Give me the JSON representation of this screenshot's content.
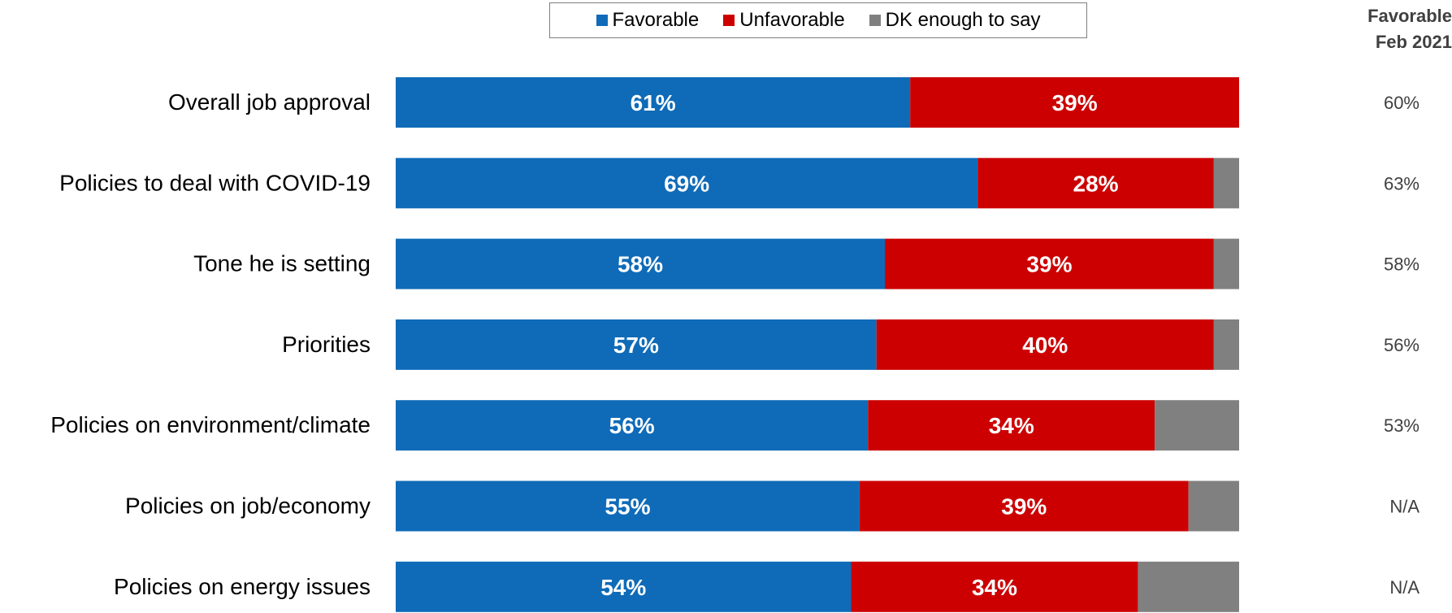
{
  "colors": {
    "favorable": "#0f6bb8",
    "unfavorable": "#cc0000",
    "dk": "#808080"
  },
  "legend": [
    {
      "label": "Favorable",
      "color": "#0f6bb8"
    },
    {
      "label": "Unfavorable",
      "color": "#cc0000"
    },
    {
      "label": "DK enough to say",
      "color": "#808080"
    }
  ],
  "side_header": {
    "line1": "Favorable",
    "line2": "Feb 2021"
  },
  "chart_data": {
    "type": "bar",
    "orientation": "horizontal",
    "stacked": true,
    "xlim": [
      0,
      100
    ],
    "categories": [
      "Overall job approval",
      "Policies to deal with COVID-19",
      "Tone he is setting",
      "Priorities",
      "Policies on environment/climate",
      "Policies on job/economy",
      "Policies on energy issues"
    ],
    "series": [
      {
        "name": "Favorable",
        "values": [
          61,
          69,
          58,
          57,
          56,
          55,
          54
        ],
        "labels": [
          "61%",
          "69%",
          "58%",
          "57%",
          "56%",
          "55%",
          "54%"
        ]
      },
      {
        "name": "Unfavorable",
        "values": [
          39,
          28,
          39,
          40,
          34,
          39,
          34
        ],
        "labels": [
          "39%",
          "28%",
          "39%",
          "40%",
          "34%",
          "39%",
          "34%"
        ]
      },
      {
        "name": "DK enough to say",
        "values": [
          0,
          3,
          3,
          3,
          10,
          6,
          12
        ]
      }
    ],
    "comparison_values": [
      "60%",
      "63%",
      "58%",
      "56%",
      "53%",
      "N/A",
      "N/A"
    ],
    "legend_position": "top",
    "grid": false
  }
}
